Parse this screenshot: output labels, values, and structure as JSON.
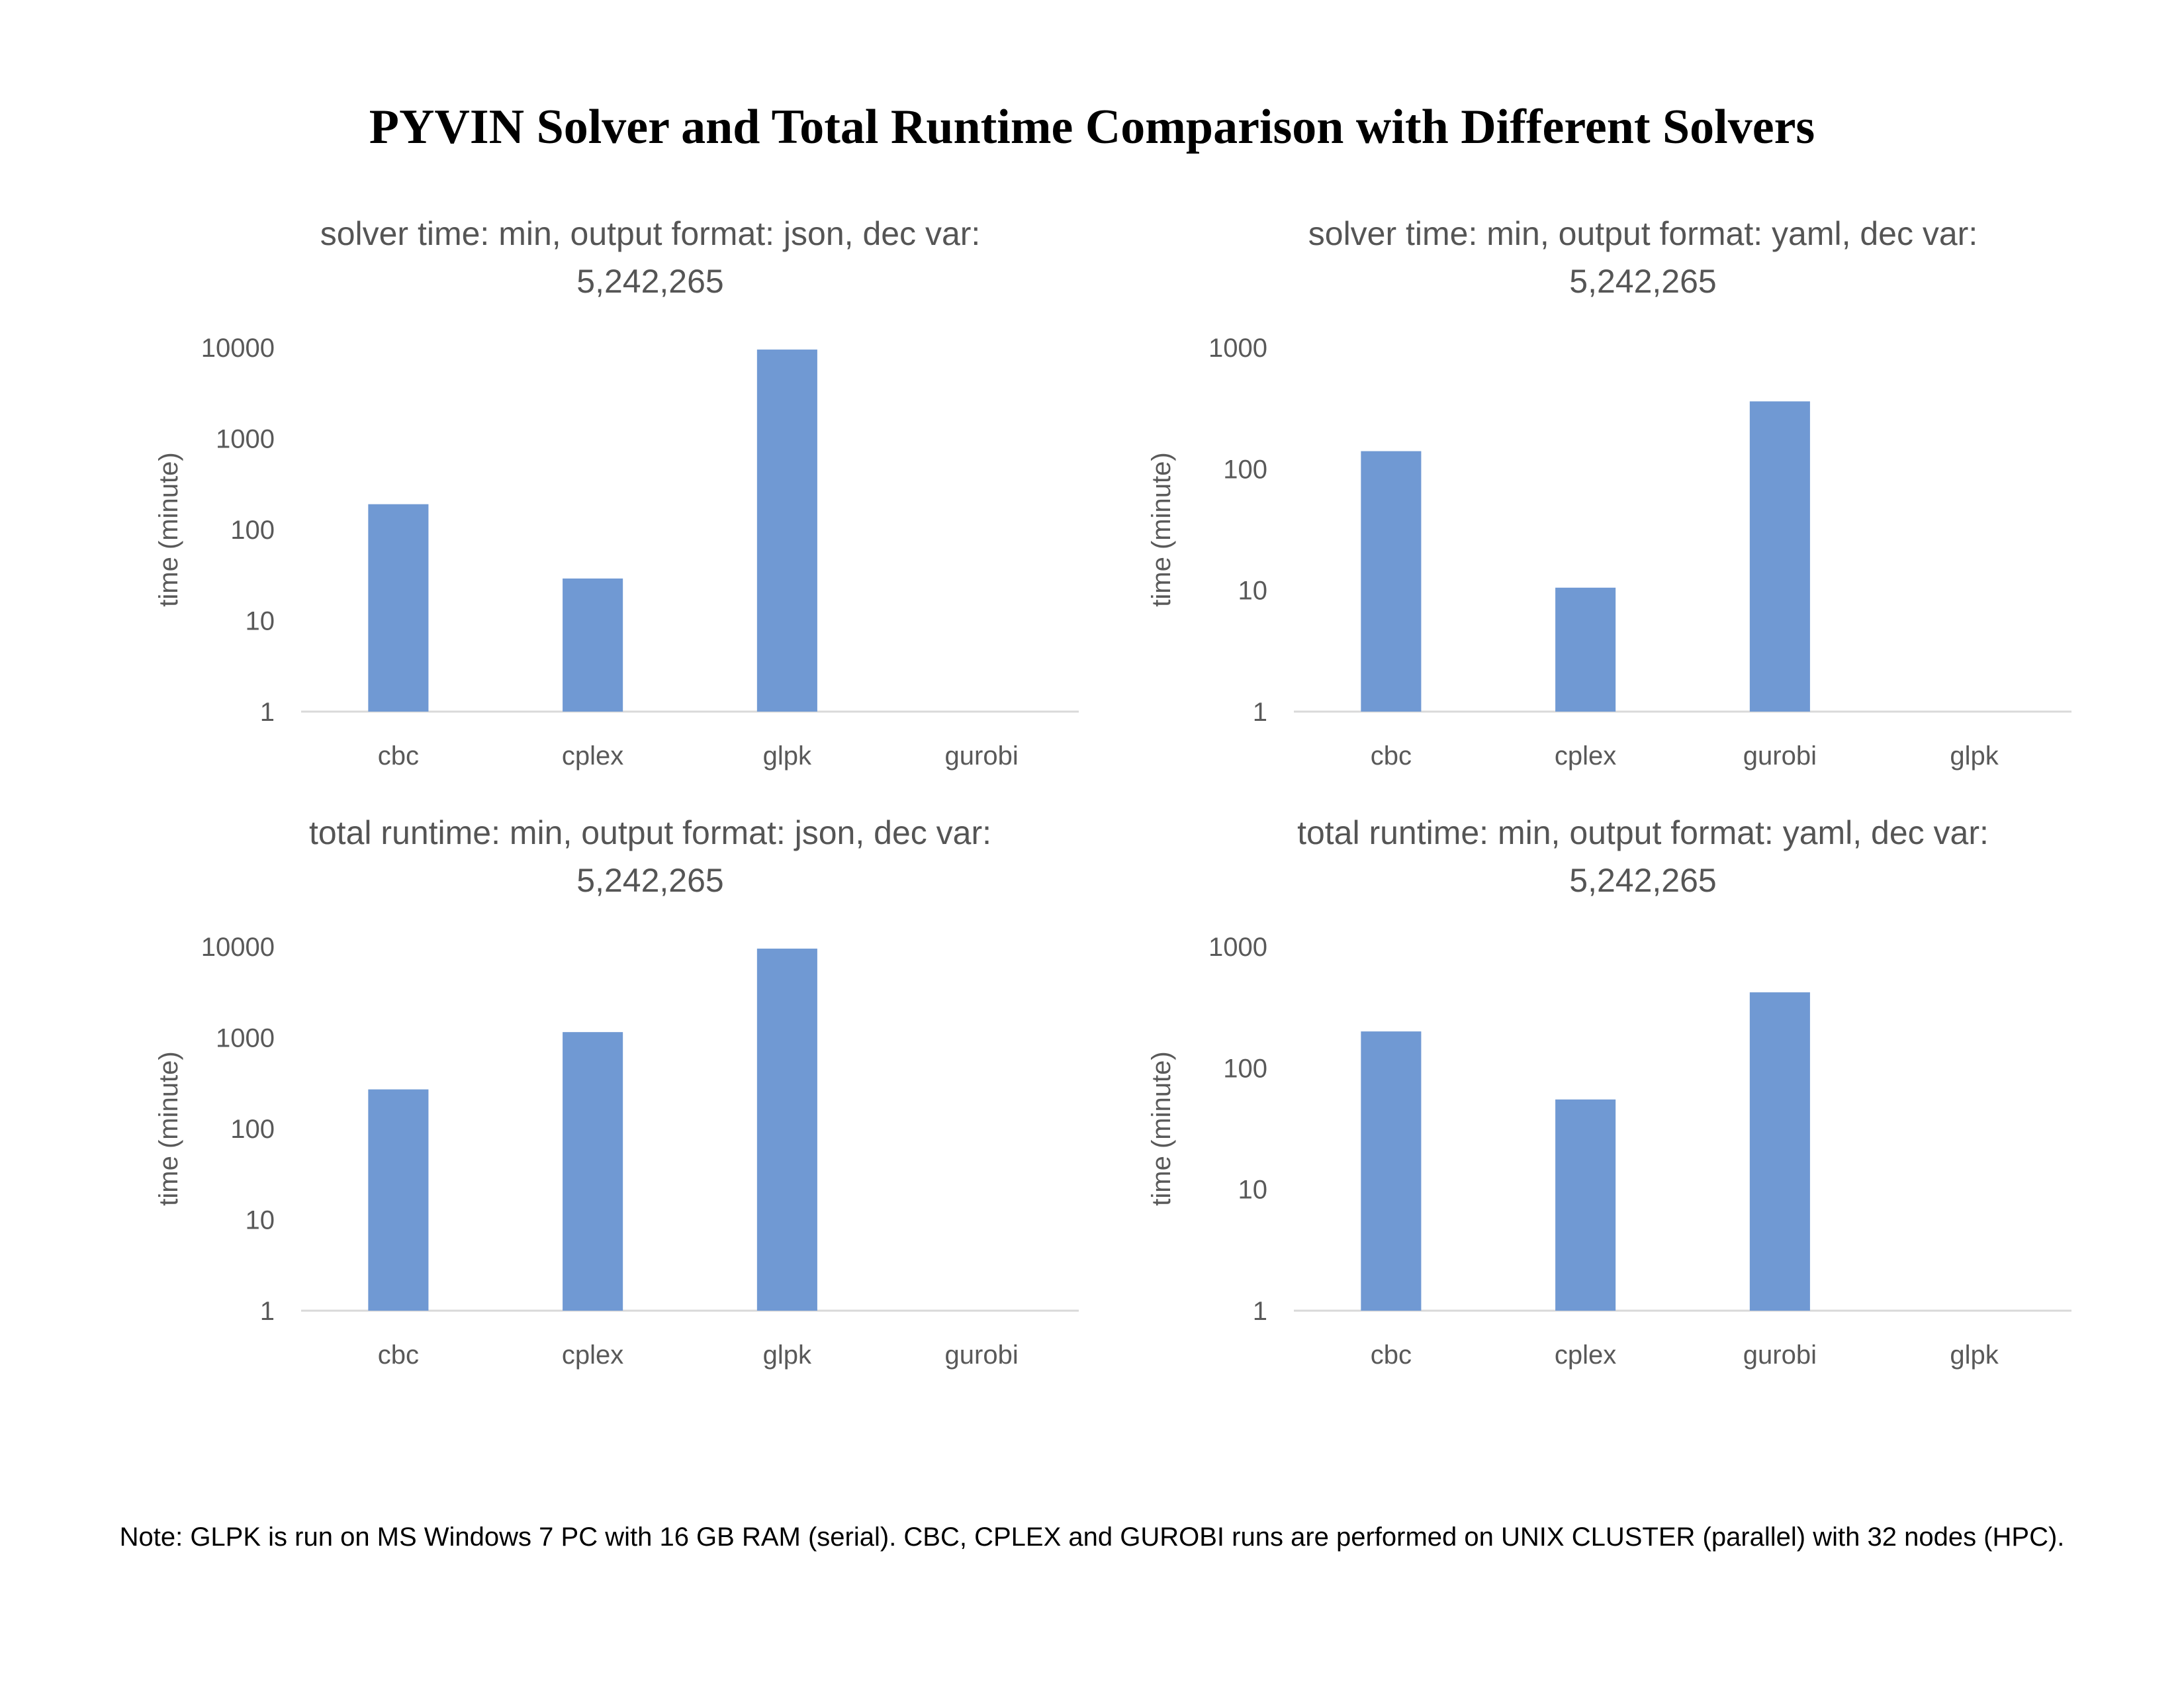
{
  "title": "PYVIN Solver and Total Runtime Comparison with Different Solvers",
  "note": "Note: GLPK is run on MS Windows 7 PC with 16 GB RAM (serial). CBC, CPLEX and GUROBI runs are performed on UNIX CLUSTER (parallel) with 32 nodes (HPC).",
  "colors": {
    "bar": "#7099d3",
    "axis": "#d9d9d9"
  },
  "chart_data": [
    {
      "type": "bar",
      "title_lines": [
        "solver time: min, output format: json, dec var:",
        "5,242,265"
      ],
      "ylabel": "time (minute)",
      "scale": "log",
      "ylim": [
        1,
        10000
      ],
      "yticks": [
        "1",
        "10",
        "100",
        "1000",
        "10000"
      ],
      "categories": [
        "cbc",
        "cplex",
        "glpk",
        "gurobi"
      ],
      "values": [
        190,
        29,
        9500,
        null
      ],
      "grid": false
    },
    {
      "type": "bar",
      "title_lines": [
        "solver time: min, output format: yaml, dec var:",
        "5,242,265"
      ],
      "ylabel": "time (minute)",
      "scale": "log",
      "ylim": [
        1,
        1000
      ],
      "yticks": [
        "1",
        "10",
        "100",
        "1000"
      ],
      "categories": [
        "cbc",
        "cplex",
        "gurobi",
        "glpk"
      ],
      "values": [
        140,
        10.5,
        360,
        null
      ],
      "grid": false
    },
    {
      "type": "bar",
      "title_lines": [
        "total runtime: min, output format: json, dec var:",
        "5,242,265"
      ],
      "ylabel": "time (minute)",
      "scale": "log",
      "ylim": [
        1,
        10000
      ],
      "yticks": [
        "1",
        "10",
        "100",
        "1000",
        "10000"
      ],
      "categories": [
        "cbc",
        "cplex",
        "glpk",
        "gurobi"
      ],
      "values": [
        270,
        1150,
        9500,
        null
      ],
      "grid": false
    },
    {
      "type": "bar",
      "title_lines": [
        "total runtime: min, output format: yaml, dec var:",
        "5,242,265"
      ],
      "ylabel": "time (minute)",
      "scale": "log",
      "ylim": [
        1,
        1000
      ],
      "yticks": [
        "1",
        "10",
        "100",
        "1000"
      ],
      "categories": [
        "cbc",
        "cplex",
        "gurobi",
        "glpk"
      ],
      "values": [
        200,
        55,
        420,
        null
      ],
      "grid": false
    }
  ]
}
